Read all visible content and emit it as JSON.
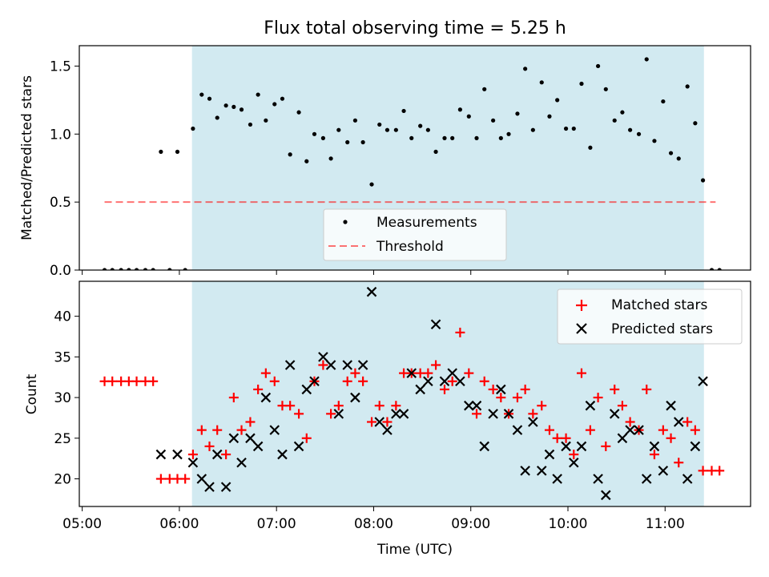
{
  "title": "Flux total observing time = 5.25 h",
  "shade_color": "#add8e6",
  "colors": {
    "measurement": "#000000",
    "threshold": "#ff0000",
    "matched": "#ff0000",
    "predicted": "#000000"
  },
  "chart_data": [
    {
      "type": "scatter",
      "ylabel": "Matched/Predicted stars",
      "xlabel": "",
      "xlim_hours": [
        4.97,
        11.88
      ],
      "ylim": [
        0,
        1.65
      ],
      "yticks": [
        0.0,
        0.5,
        1.0,
        1.5
      ],
      "ytick_labels": [
        "0.0",
        "0.5",
        "1.0",
        "1.5"
      ],
      "shaded_span_hours": [
        6.13,
        11.4
      ],
      "threshold": {
        "value": 0.5,
        "x_range_hours": [
          5.23,
          11.52
        ]
      },
      "legend": {
        "position": "lower-center",
        "entries": [
          "Measurements",
          "Threshold"
        ]
      },
      "series": [
        {
          "name": "Measurements",
          "x_hours": [
            5.23,
            5.31,
            5.4,
            5.48,
            5.56,
            5.65,
            5.73,
            5.81,
            5.9,
            5.98,
            6.06,
            6.14,
            6.23,
            6.31,
            6.39,
            6.48,
            6.56,
            6.64,
            6.73,
            6.81,
            6.89,
            6.98,
            7.06,
            7.14,
            7.23,
            7.31,
            7.39,
            7.48,
            7.56,
            7.64,
            7.73,
            7.81,
            7.89,
            7.98,
            8.06,
            8.14,
            8.23,
            8.31,
            8.39,
            8.48,
            8.56,
            8.64,
            8.73,
            8.81,
            8.89,
            8.98,
            9.06,
            9.14,
            9.23,
            9.31,
            9.39,
            9.48,
            9.56,
            9.64,
            9.73,
            9.81,
            9.89,
            9.98,
            10.06,
            10.14,
            10.23,
            10.31,
            10.39,
            10.48,
            10.56,
            10.64,
            10.73,
            10.81,
            10.89,
            10.98,
            11.06,
            11.14,
            11.23,
            11.31,
            11.39,
            11.48,
            11.56
          ],
          "values": [
            0,
            0,
            0,
            0,
            0,
            0,
            0,
            0.87,
            0,
            0.87,
            0,
            1.04,
            1.29,
            1.26,
            1.12,
            1.21,
            1.2,
            1.18,
            1.07,
            1.29,
            1.1,
            1.22,
            1.26,
            0.85,
            1.16,
            0.8,
            1.0,
            0.97,
            0.82,
            1.03,
            0.94,
            1.1,
            0.94,
            0.63,
            1.07,
            1.03,
            1.03,
            1.17,
            0.97,
            1.06,
            1.03,
            0.87,
            0.97,
            0.97,
            1.18,
            1.13,
            0.97,
            1.33,
            1.1,
            0.97,
            1.0,
            1.15,
            1.48,
            1.03,
            1.38,
            1.13,
            1.25,
            1.04,
            1.04,
            1.37,
            0.9,
            1.5,
            1.33,
            1.1,
            1.16,
            1.03,
            1.0,
            1.55,
            0.95,
            1.24,
            0.86,
            0.82,
            1.35,
            1.08,
            0.66,
            0,
            0
          ]
        }
      ]
    },
    {
      "type": "scatter",
      "ylabel": "Count",
      "xlabel": "Time (UTC)",
      "xlim_hours": [
        4.97,
        11.88
      ],
      "ylim": [
        16.6,
        44.3
      ],
      "yticks": [
        20,
        25,
        30,
        35,
        40
      ],
      "ytick_labels": [
        "20",
        "25",
        "30",
        "35",
        "40"
      ],
      "xticks_hours": [
        5,
        6,
        7,
        8,
        9,
        10,
        11
      ],
      "xtick_labels": [
        "05:00",
        "06:00",
        "07:00",
        "08:00",
        "09:00",
        "10:00",
        "11:00"
      ],
      "shaded_span_hours": [
        6.13,
        11.4
      ],
      "legend": {
        "position": "top-right",
        "entries": [
          "Matched stars",
          "Predicted stars"
        ]
      },
      "series": [
        {
          "name": "Matched stars",
          "marker": "plus",
          "x_hours": [
            5.23,
            5.31,
            5.4,
            5.48,
            5.56,
            5.65,
            5.73,
            5.81,
            5.9,
            5.98,
            6.06,
            6.14,
            6.23,
            6.31,
            6.39,
            6.48,
            6.56,
            6.64,
            6.73,
            6.81,
            6.89,
            6.98,
            7.06,
            7.14,
            7.23,
            7.31,
            7.39,
            7.48,
            7.56,
            7.64,
            7.73,
            7.81,
            7.89,
            7.98,
            8.06,
            8.14,
            8.23,
            8.31,
            8.39,
            8.48,
            8.56,
            8.64,
            8.73,
            8.81,
            8.89,
            8.98,
            9.06,
            9.14,
            9.23,
            9.31,
            9.39,
            9.48,
            9.56,
            9.64,
            9.73,
            9.81,
            9.89,
            9.98,
            10.06,
            10.14,
            10.23,
            10.31,
            10.39,
            10.48,
            10.56,
            10.64,
            10.73,
            10.81,
            10.89,
            10.98,
            11.06,
            11.14,
            11.23,
            11.31,
            11.39,
            11.48,
            11.56
          ],
          "values": [
            32,
            32,
            32,
            32,
            32,
            32,
            32,
            20,
            20,
            20,
            20,
            23,
            26,
            24,
            26,
            23,
            30,
            26,
            27,
            31,
            33,
            32,
            29,
            29,
            28,
            25,
            32,
            34,
            28,
            29,
            32,
            33,
            32,
            27,
            29,
            27,
            29,
            33,
            33,
            33,
            33,
            34,
            31,
            32,
            38,
            33,
            28,
            32,
            31,
            30,
            28,
            30,
            31,
            28,
            29,
            26,
            25,
            25,
            23,
            33,
            26,
            30,
            24,
            31,
            29,
            27,
            26,
            31,
            23,
            26,
            25,
            22,
            27,
            26,
            21,
            21,
            21
          ]
        },
        {
          "name": "Predicted stars",
          "marker": "x",
          "x_hours": [
            5.81,
            5.98,
            6.14,
            6.23,
            6.31,
            6.39,
            6.48,
            6.56,
            6.64,
            6.73,
            6.81,
            6.89,
            6.98,
            7.06,
            7.14,
            7.23,
            7.31,
            7.39,
            7.48,
            7.56,
            7.64,
            7.73,
            7.81,
            7.89,
            7.98,
            8.06,
            8.14,
            8.23,
            8.31,
            8.39,
            8.48,
            8.56,
            8.64,
            8.73,
            8.81,
            8.89,
            8.98,
            9.06,
            9.14,
            9.23,
            9.31,
            9.39,
            9.48,
            9.56,
            9.64,
            9.73,
            9.81,
            9.89,
            9.98,
            10.06,
            10.14,
            10.23,
            10.31,
            10.39,
            10.48,
            10.56,
            10.64,
            10.73,
            10.81,
            10.89,
            10.98,
            11.06,
            11.14,
            11.23,
            11.31,
            11.39
          ],
          "values": [
            23,
            23,
            22,
            20,
            19,
            23,
            19,
            25,
            22,
            25,
            24,
            30,
            26,
            23,
            34,
            24,
            31,
            32,
            35,
            34,
            28,
            34,
            30,
            34,
            43,
            27,
            26,
            28,
            28,
            33,
            31,
            32,
            39,
            32,
            33,
            32,
            29,
            29,
            24,
            28,
            31,
            28,
            26,
            21,
            27,
            21,
            23,
            20,
            24,
            22,
            24,
            29,
            20,
            18,
            28,
            25,
            26,
            26,
            20,
            24,
            21,
            29,
            27,
            20,
            24,
            32
          ]
        }
      ]
    }
  ]
}
